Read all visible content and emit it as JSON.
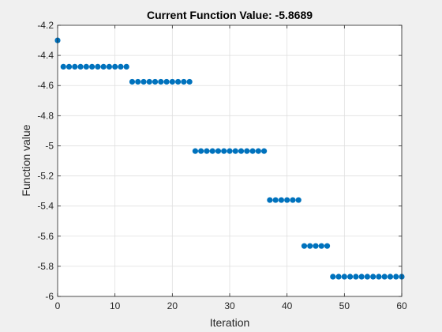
{
  "chart_data": {
    "type": "scatter",
    "title": "Current Function Value: -5.8689",
    "xlabel": "Iteration",
    "ylabel": "Function value",
    "xlim": [
      0,
      60
    ],
    "ylim": [
      -6,
      -4.2
    ],
    "xticks": [
      0,
      10,
      20,
      30,
      40,
      50,
      60
    ],
    "yticks": [
      -6,
      -5.8,
      -5.6,
      -5.4,
      -5.2,
      -5,
      -4.8,
      -4.6,
      -4.4,
      -4.2
    ],
    "xtick_labels": [
      "0",
      "10",
      "20",
      "30",
      "40",
      "50",
      "60"
    ],
    "ytick_labels": [
      "-6",
      "-5.8",
      "-5.6",
      "-5.4",
      "-5.2",
      "-5",
      "-4.8",
      "-4.6",
      "-4.4",
      "-4.2"
    ],
    "grid": true,
    "marker_color": "#0072bd",
    "series": [
      {
        "x": [
          0,
          1,
          2,
          3,
          4,
          5,
          6,
          7,
          8,
          9,
          10,
          11,
          12,
          13,
          14,
          15,
          16,
          17,
          18,
          19,
          20,
          21,
          22,
          23,
          24,
          25,
          26,
          27,
          28,
          29,
          30,
          31,
          32,
          33,
          34,
          35,
          36,
          37,
          38,
          39,
          40,
          41,
          42,
          43,
          44,
          45,
          46,
          47,
          48,
          49,
          50,
          51,
          52,
          53,
          54,
          55,
          56,
          57,
          58,
          59,
          60
        ],
        "y": [
          -4.3,
          -4.475,
          -4.475,
          -4.475,
          -4.475,
          -4.475,
          -4.475,
          -4.475,
          -4.475,
          -4.475,
          -4.475,
          -4.475,
          -4.475,
          -4.575,
          -4.575,
          -4.575,
          -4.575,
          -4.575,
          -4.575,
          -4.575,
          -4.575,
          -4.575,
          -4.575,
          -4.575,
          -5.035,
          -5.035,
          -5.035,
          -5.035,
          -5.035,
          -5.035,
          -5.035,
          -5.035,
          -5.035,
          -5.035,
          -5.035,
          -5.035,
          -5.035,
          -5.36,
          -5.36,
          -5.36,
          -5.36,
          -5.36,
          -5.36,
          -5.665,
          -5.665,
          -5.665,
          -5.665,
          -5.665,
          -5.8689,
          -5.8689,
          -5.8689,
          -5.8689,
          -5.8689,
          -5.8689,
          -5.8689,
          -5.8689,
          -5.8689,
          -5.8689,
          -5.8689,
          -5.8689,
          -5.8689
        ]
      }
    ]
  }
}
